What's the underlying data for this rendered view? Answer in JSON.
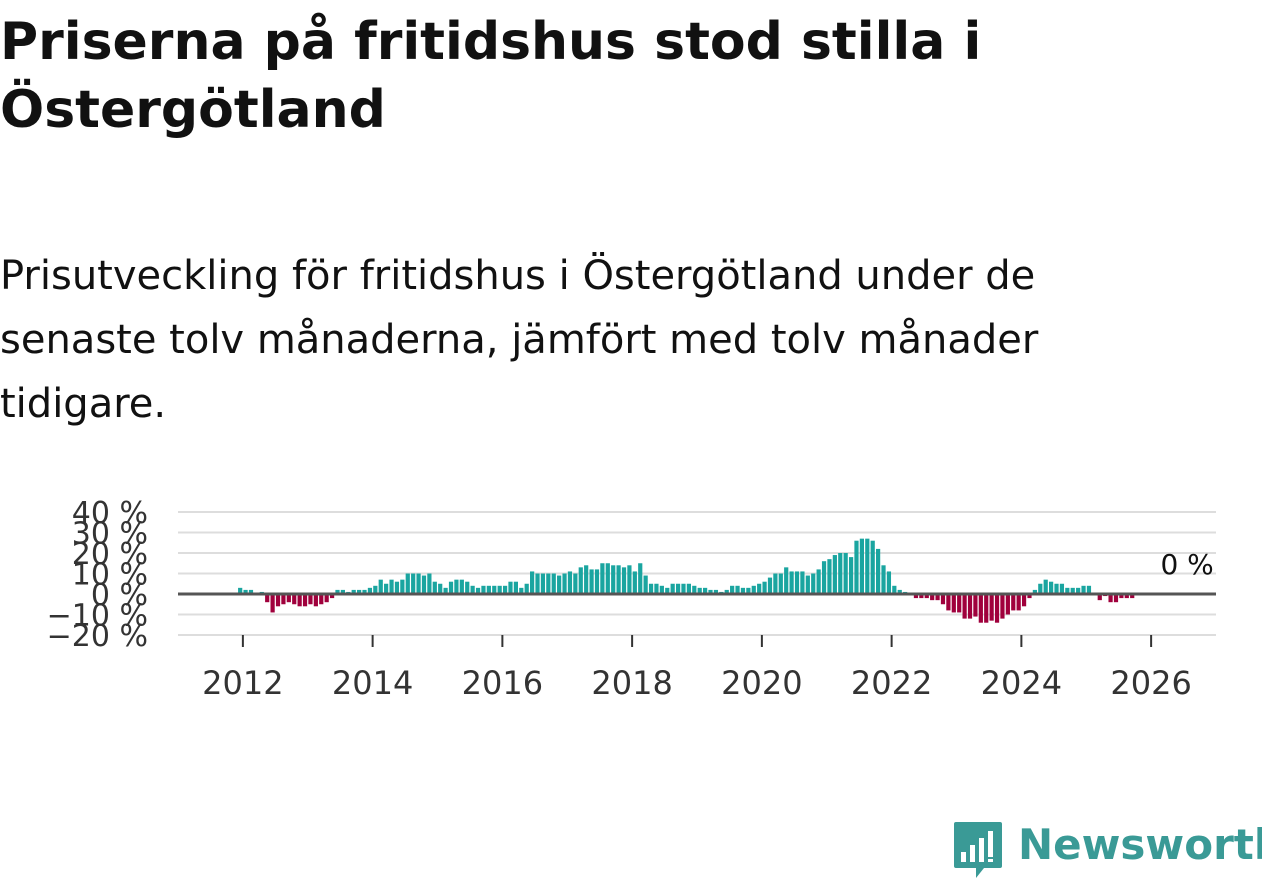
{
  "header": {
    "title": "Priserna på fritidshus stod stilla i Östergötland",
    "subtitle": "Prisutveckling för fritidshus i Östergötland under de senaste tolv månaderna, jämfört med tolv månader tidigare."
  },
  "brand": {
    "name": "Newsworthy",
    "icon": "newsworthy-logo-icon",
    "color": "#3a9a96"
  },
  "colors": {
    "positive": "#1aa5a0",
    "negative": "#a0003c",
    "zero_line": "#555555",
    "grid": "#dddddd"
  },
  "chart_data": {
    "type": "bar",
    "title": "",
    "xlabel": "",
    "ylabel": "",
    "ylim": [
      -20,
      40
    ],
    "yticks": [
      40,
      30,
      20,
      10,
      0,
      -10,
      -20
    ],
    "ytick_labels": [
      "40 %",
      "30 %",
      "20 %",
      "10 %",
      "0 %",
      "−10 %",
      "−20 %"
    ],
    "xlim": [
      "2011-01",
      "2026-12"
    ],
    "xticks": [
      "2012",
      "2014",
      "2016",
      "2018",
      "2020",
      "2022",
      "2024",
      "2026"
    ],
    "grid": true,
    "annotation": {
      "text": "0 %",
      "x": "2026-01",
      "y": 0
    },
    "x": [
      "2011-12",
      "2012-01",
      "2012-02",
      "2012-03",
      "2012-04",
      "2012-05",
      "2012-06",
      "2012-07",
      "2012-08",
      "2012-09",
      "2012-10",
      "2012-11",
      "2012-12",
      "2013-01",
      "2013-02",
      "2013-03",
      "2013-04",
      "2013-05",
      "2013-06",
      "2013-07",
      "2013-08",
      "2013-09",
      "2013-10",
      "2013-11",
      "2013-12",
      "2014-01",
      "2014-02",
      "2014-03",
      "2014-04",
      "2014-05",
      "2014-06",
      "2014-07",
      "2014-08",
      "2014-09",
      "2014-10",
      "2014-11",
      "2014-12",
      "2015-01",
      "2015-02",
      "2015-03",
      "2015-04",
      "2015-05",
      "2015-06",
      "2015-07",
      "2015-08",
      "2015-09",
      "2015-10",
      "2015-11",
      "2015-12",
      "2016-01",
      "2016-02",
      "2016-03",
      "2016-04",
      "2016-05",
      "2016-06",
      "2016-07",
      "2016-08",
      "2016-09",
      "2016-10",
      "2016-11",
      "2016-12",
      "2017-01",
      "2017-02",
      "2017-03",
      "2017-04",
      "2017-05",
      "2017-06",
      "2017-07",
      "2017-08",
      "2017-09",
      "2017-10",
      "2017-11",
      "2017-12",
      "2018-01",
      "2018-02",
      "2018-03",
      "2018-04",
      "2018-05",
      "2018-06",
      "2018-07",
      "2018-08",
      "2018-09",
      "2018-10",
      "2018-11",
      "2018-12",
      "2019-01",
      "2019-02",
      "2019-03",
      "2019-04",
      "2019-05",
      "2019-06",
      "2019-07",
      "2019-08",
      "2019-09",
      "2019-10",
      "2019-11",
      "2019-12",
      "2020-01",
      "2020-02",
      "2020-03",
      "2020-04",
      "2020-05",
      "2020-06",
      "2020-07",
      "2020-08",
      "2020-09",
      "2020-10",
      "2020-11",
      "2020-12",
      "2021-01",
      "2021-02",
      "2021-03",
      "2021-04",
      "2021-05",
      "2021-06",
      "2021-07",
      "2021-08",
      "2021-09",
      "2021-10",
      "2021-11",
      "2021-12",
      "2022-01",
      "2022-02",
      "2022-03",
      "2022-04",
      "2022-05",
      "2022-06",
      "2022-07",
      "2022-08",
      "2022-09",
      "2022-10",
      "2022-11",
      "2022-12",
      "2023-01",
      "2023-02",
      "2023-03",
      "2023-04",
      "2023-05",
      "2023-06",
      "2023-07",
      "2023-08",
      "2023-09",
      "2023-10",
      "2023-11",
      "2023-12",
      "2024-01",
      "2024-02",
      "2024-03",
      "2024-04",
      "2024-05",
      "2024-06",
      "2024-07",
      "2024-08",
      "2024-09",
      "2024-10",
      "2024-11",
      "2024-12",
      "2025-01",
      "2025-02",
      "2025-03",
      "2025-04",
      "2025-05",
      "2025-06",
      "2025-07",
      "2025-08",
      "2025-09",
      "2025-10",
      "2025-11",
      "2025-12",
      "2026-01",
      "2026-02"
    ],
    "values": [
      3,
      2,
      2,
      0,
      1,
      -4,
      -9,
      -6,
      -5,
      -4,
      -5,
      -6,
      -6,
      -5,
      -6,
      -5,
      -4,
      -2,
      2,
      2,
      1,
      2,
      2,
      2,
      3,
      4,
      7,
      5,
      7,
      6,
      7,
      10,
      10,
      10,
      9,
      10,
      6,
      5,
      3,
      6,
      7,
      7,
      6,
      4,
      3,
      4,
      4,
      4,
      4,
      4,
      6,
      6,
      3,
      5,
      11,
      10,
      10,
      10,
      10,
      9,
      10,
      11,
      10,
      13,
      14,
      12,
      12,
      15,
      15,
      14,
      14,
      13,
      14,
      11,
      15,
      9,
      5,
      5,
      4,
      3,
      5,
      5,
      5,
      5,
      4,
      3,
      3,
      2,
      2,
      1,
      2,
      4,
      4,
      3,
      3,
      4,
      5,
      6,
      8,
      10,
      10,
      13,
      11,
      11,
      11,
      9,
      10,
      12,
      16,
      17,
      19,
      20,
      20,
      18,
      26,
      27,
      27,
      26,
      22,
      14,
      11,
      4,
      2,
      1,
      0,
      -2,
      -2,
      -2,
      -3,
      -3,
      -5,
      -8,
      -9,
      -9,
      -12,
      -12,
      -11,
      -14,
      -14,
      -13,
      -14,
      -12,
      -10,
      -8,
      -8,
      -6,
      -2,
      2,
      5,
      7,
      6,
      5,
      5,
      3,
      3,
      3,
      4,
      4,
      0,
      -3,
      -1,
      -4,
      -4,
      -2,
      -2,
      -2,
      0,
      0,
      0,
      0,
      0
    ]
  }
}
